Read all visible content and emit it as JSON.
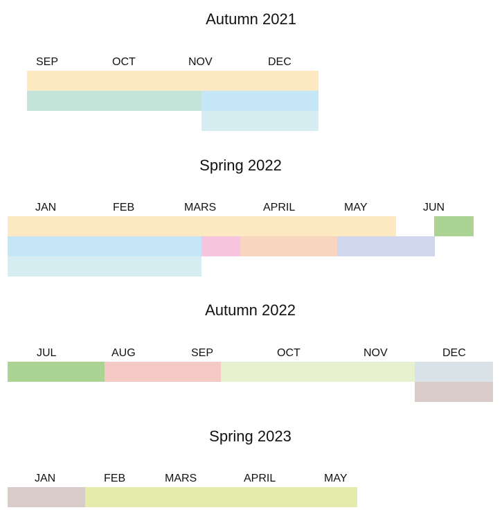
{
  "sections": [
    {
      "title": "Autumn 2021",
      "months": [
        "SEP",
        "OCT",
        "NOV",
        "DEC"
      ],
      "bars": [
        {
          "color": "#fde9c1"
        },
        {
          "color": "#c4e4d9"
        },
        {
          "color": "#c5e6f7"
        },
        {
          "color": "#d6edf1"
        }
      ]
    },
    {
      "title": "Spring 2022",
      "months": [
        "JAN",
        "FEB",
        "MARS",
        "APRIL",
        "MAY",
        "JUN"
      ],
      "bars": [
        {
          "color": "#fde9c1"
        },
        {
          "color": "#abd393"
        },
        {
          "color": "#c5e6f7"
        },
        {
          "color": "#f6c5dd"
        },
        {
          "color": "#f7d5bf"
        },
        {
          "color": "#d0d6eb"
        },
        {
          "color": "#d6edf1"
        }
      ]
    },
    {
      "title": "Autumn 2022",
      "months": [
        "JUL",
        "AUG",
        "SEP",
        "OCT",
        "NOV",
        "DEC"
      ],
      "bars": [
        {
          "color": "#abd393"
        },
        {
          "color": "#f5c9c5"
        },
        {
          "color": "#e8f1cf"
        },
        {
          "color": "#d9e2e7"
        },
        {
          "color": "#d9ccc8"
        }
      ]
    },
    {
      "title": "Spring 2023",
      "months": [
        "JAN",
        "FEB",
        "MARS",
        "APRIL",
        "MAY"
      ],
      "bars": [
        {
          "color": "#d9ccc8"
        },
        {
          "color": "#e5ebab"
        }
      ]
    }
  ]
}
